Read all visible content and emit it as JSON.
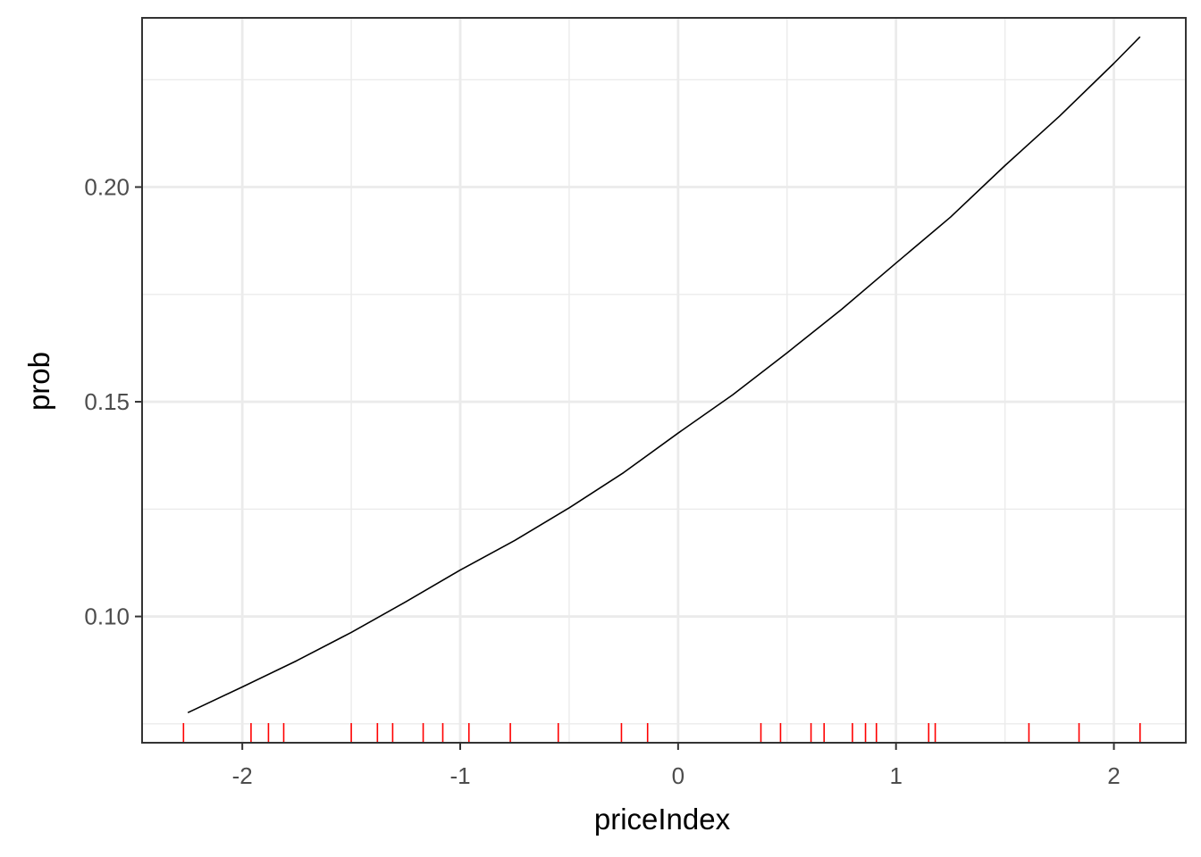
{
  "chart_data": {
    "type": "line",
    "xlabel": "priceIndex",
    "ylabel": "prob",
    "xlim": [
      -2.46,
      2.33
    ],
    "ylim": [
      0.0706,
      0.2394
    ],
    "x_ticks": [
      {
        "value": -2,
        "label": "-2"
      },
      {
        "value": -1,
        "label": "-1"
      },
      {
        "value": 0,
        "label": "0"
      },
      {
        "value": 1,
        "label": "1"
      },
      {
        "value": 2,
        "label": "2"
      }
    ],
    "y_ticks": [
      {
        "value": 0.1,
        "label": "0.10"
      },
      {
        "value": 0.15,
        "label": "0.15"
      },
      {
        "value": 0.2,
        "label": "0.20"
      }
    ],
    "x_minor_grid": [
      -1.5,
      -0.5,
      0.5,
      1.5
    ],
    "y_minor_grid": [
      0.075,
      0.125,
      0.175,
      0.225
    ],
    "grid": true,
    "series": [
      {
        "color": "#000000",
        "x": [
          -2.25,
          -2.0,
          -1.75,
          -1.5,
          -1.25,
          -1.0,
          -0.75,
          -0.5,
          -0.25,
          0.0,
          0.25,
          0.5,
          0.75,
          1.0,
          1.25,
          1.5,
          1.75,
          2.0,
          2.12
        ],
        "y": [
          0.0776,
          0.0836,
          0.0897,
          0.0963,
          0.1034,
          0.1108,
          0.1177,
          0.1253,
          0.1335,
          0.1427,
          0.1516,
          0.1614,
          0.1715,
          0.1823,
          0.193,
          0.205,
          0.2165,
          0.2288,
          0.235
        ]
      }
    ],
    "rug": {
      "color": "#ff0000",
      "values": [
        -2.27,
        -1.96,
        -1.88,
        -1.81,
        -1.5,
        -1.38,
        -1.31,
        -1.17,
        -1.08,
        -0.96,
        -0.77,
        -0.55,
        -0.26,
        -0.14,
        0.38,
        0.47,
        0.61,
        0.67,
        0.8,
        0.86,
        0.91,
        1.15,
        1.18,
        1.61,
        1.84,
        2.12
      ]
    }
  }
}
